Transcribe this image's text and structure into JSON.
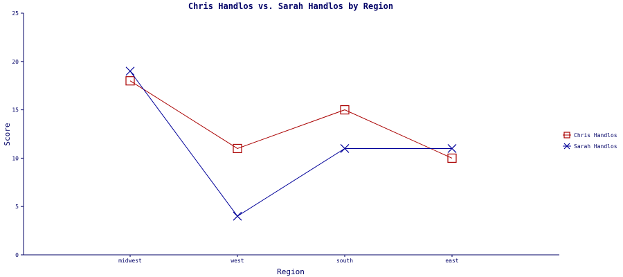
{
  "chart_data": {
    "type": "line",
    "title": "Chris Handlos vs. Sarah Handlos by Region",
    "xlabel": "Region",
    "ylabel": "Score",
    "categories": [
      "midwest",
      "west",
      "south",
      "east"
    ],
    "ylim": [
      0,
      25
    ],
    "yticks": [
      0,
      5,
      10,
      15,
      20,
      25
    ],
    "grid": false,
    "legend_position": "right",
    "series": [
      {
        "name": "Chris Handlos",
        "values": [
          18,
          11,
          15,
          10
        ],
        "color": "#aa0000",
        "marker": "square"
      },
      {
        "name": "Sarah Handlos",
        "values": [
          19,
          4,
          11,
          11
        ],
        "color": "#000099",
        "marker": "x"
      }
    ]
  },
  "colors": {
    "axis": "#000066",
    "text": "#000066",
    "background": "#ffffff"
  }
}
